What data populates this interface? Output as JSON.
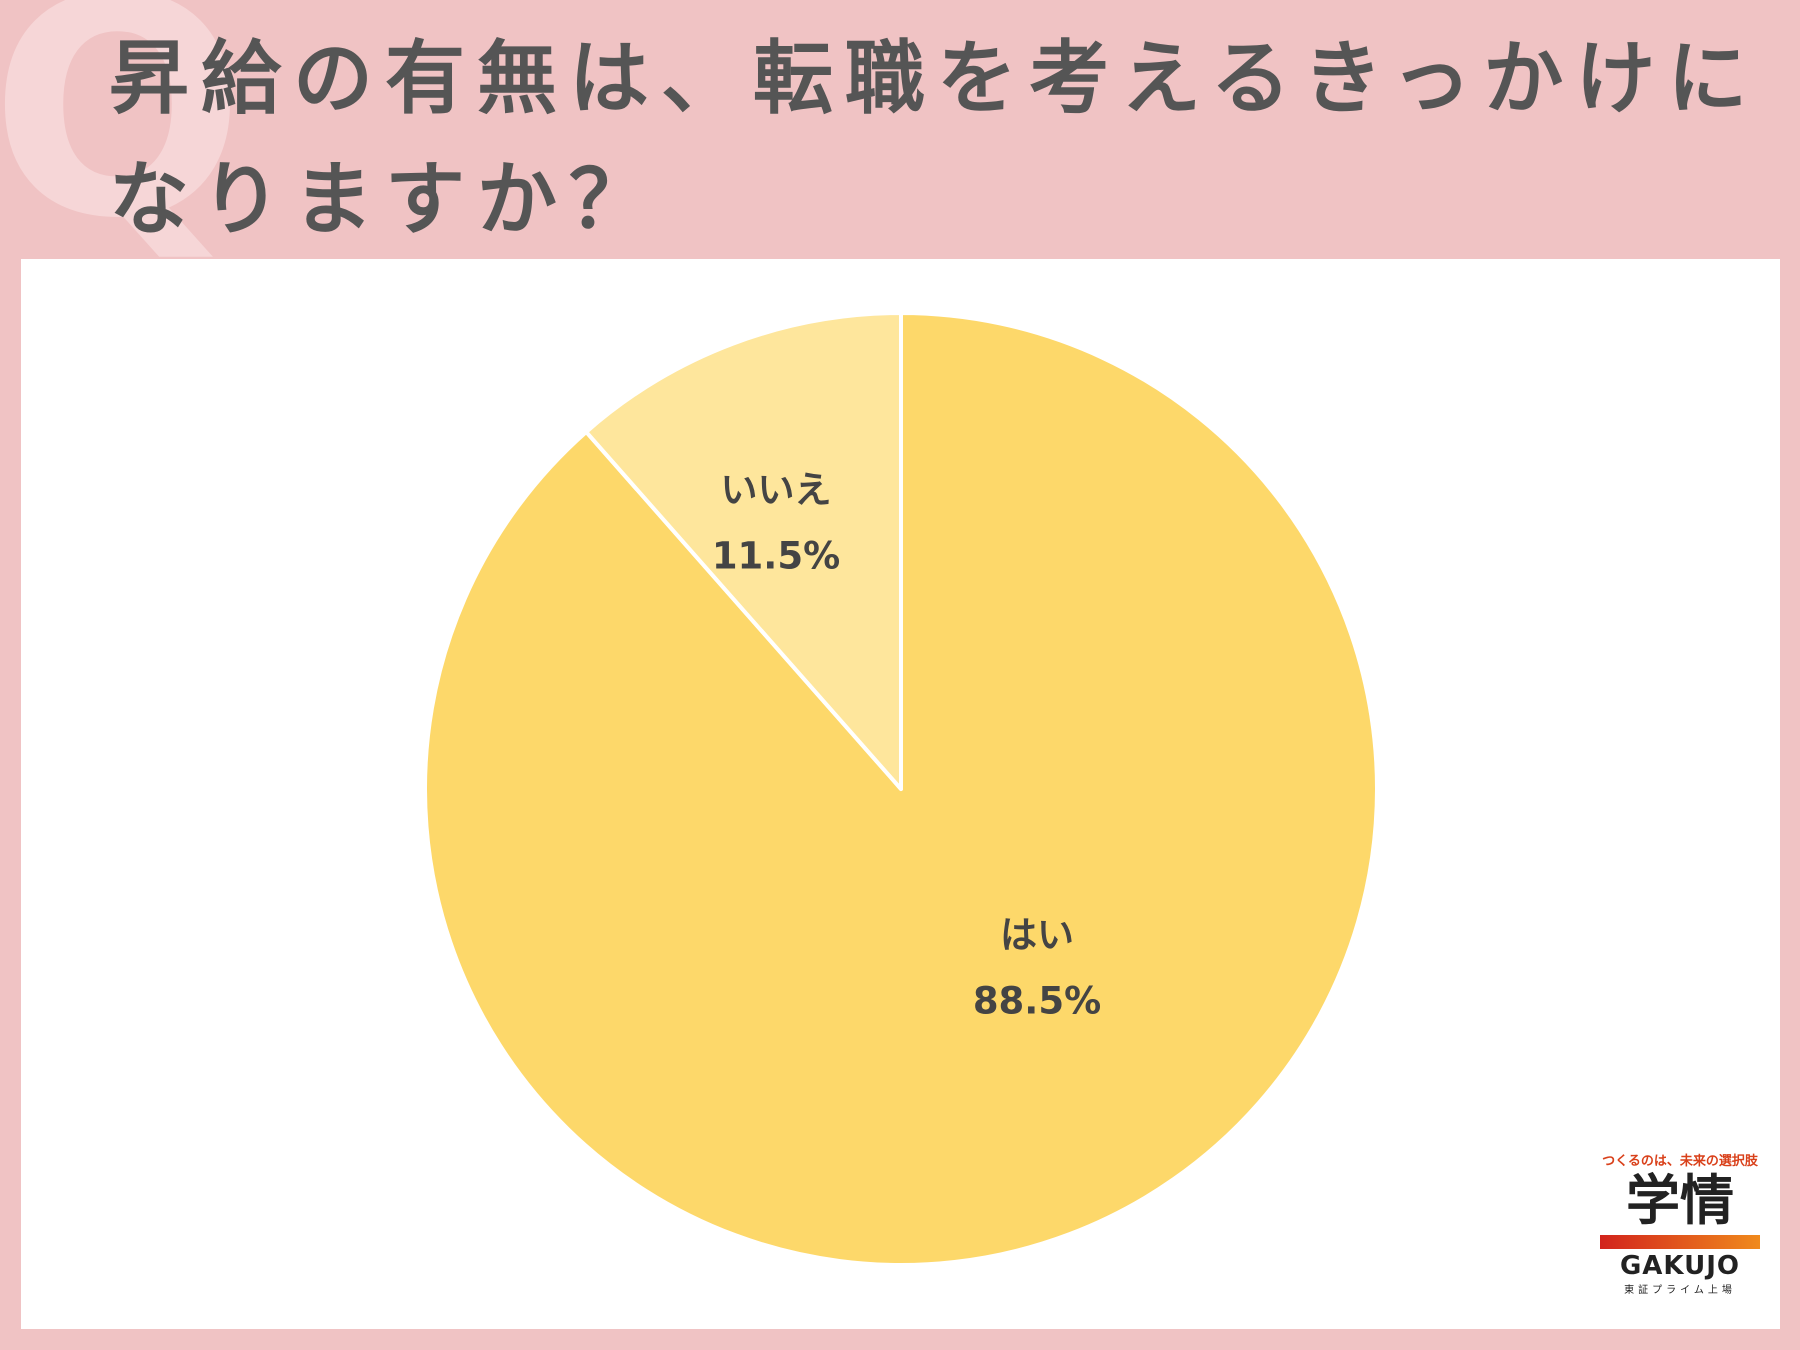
{
  "chart_data": {
    "type": "pie",
    "title": "昇給の有無は、転職を考えるきっかけになりますか？",
    "badge": "Q",
    "categories": [
      "はい",
      "いいえ"
    ],
    "values": [
      88.5,
      11.5
    ],
    "value_labels": [
      "88.5%",
      "11.5%"
    ],
    "colors": [
      "#fdd86a",
      "#fee69c"
    ]
  },
  "logo": {
    "tagline": "つくるのは、未来の選択肢",
    "name": "学情",
    "roman": "GAKUJO",
    "note": "東証プライム上場"
  }
}
